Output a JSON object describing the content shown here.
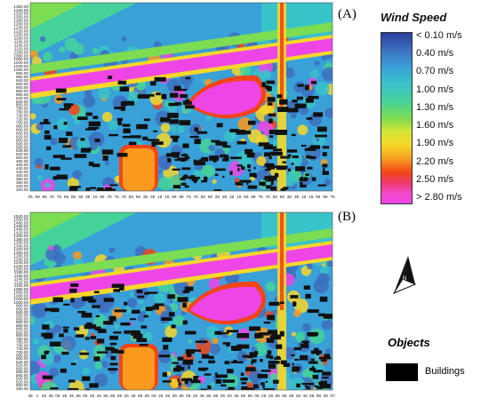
{
  "panels": [
    {
      "label": "(A)",
      "y_ticks": [
        "1360.00",
        "1340.00",
        "1320.00",
        "1300.00",
        "1280.00",
        "1260.00",
        "1240.00",
        "1220.00",
        "1200.00",
        "1180.00",
        "1160.00",
        "1140.00",
        "1120.00",
        "1100.00",
        "1080.00",
        "1060.00",
        "1040.00",
        "1020.00",
        "1000.00",
        "980.00",
        "960.00",
        "940.00",
        "920.00",
        "900.00",
        "880.00",
        "860.00",
        "840.00",
        "820.00",
        "800.00",
        "780.00",
        "760.00",
        "740.00",
        "720.00",
        "700.00",
        "680.00",
        "660.00",
        "640.00",
        "620.00",
        "600.00",
        "580.00",
        "560.00",
        "540.00",
        "520.00",
        "500.00",
        "480.00",
        "460.00",
        "440.00",
        "420.00",
        "400.00",
        "380.00",
        "360.00",
        "340.00",
        "320.00"
      ],
      "x_ticks": [
        "25",
        "96",
        "96",
        "76",
        "76",
        "56",
        "56",
        "36",
        "36",
        "16",
        "96",
        "76",
        "76",
        "76",
        "56",
        "56",
        "36",
        "36",
        "16",
        "16",
        "96",
        "96",
        "76",
        "76",
        "56",
        "56",
        "36",
        "36",
        "16",
        "16",
        "96",
        "96",
        "76",
        "76",
        "56",
        "56",
        "36",
        "36",
        "16",
        "16",
        "96",
        "96",
        "76"
      ]
    },
    {
      "label": "(B)",
      "y_ticks": [
        "1520.00",
        "1500.00",
        "1480.00",
        "1460.00",
        "1440.00",
        "1420.00",
        "1400.00",
        "1380.00",
        "1360.00",
        "1340.00",
        "1320.00",
        "1300.00",
        "1280.00",
        "1260.00",
        "1240.00",
        "1220.00",
        "1200.00",
        "1180.00",
        "1160.00",
        "1140.00",
        "1120.00",
        "1100.00",
        "1080.00",
        "1060.00",
        "1040.00",
        "1020.00",
        "1000.00",
        "980.00",
        "960.00",
        "940.00",
        "920.00",
        "900.00",
        "880.00",
        "860.00",
        "840.00",
        "820.00",
        "800.00",
        "780.00",
        "760.00",
        "740.00",
        "720.00",
        "700.00",
        "680.00",
        "660.00",
        "640.00",
        "620.00",
        "600.00",
        "580.00",
        "560.00",
        "540.00",
        "520.00",
        "500.00",
        "480.00"
      ],
      "x_ticks": [
        "38",
        "4",
        "26",
        "46",
        "06",
        "26",
        "46",
        "66",
        "06",
        "26",
        "46",
        "66",
        "86",
        "06",
        "26",
        "46",
        "66",
        "86",
        "06",
        "26",
        "46",
        "66",
        "86",
        "06",
        "26",
        "46",
        "66",
        "86",
        "06",
        "26",
        "46",
        "66",
        "86",
        "06",
        "26",
        "46",
        "66",
        "86",
        "06",
        "26",
        "46",
        "66",
        "86",
        "06",
        "07"
      ]
    }
  ],
  "legend": {
    "title": "Wind Speed",
    "items": [
      "< 0.10 m/s",
      "0.40  m/s",
      "0.70  m/s",
      "1.00  m/s",
      "1.30  m/s",
      "1.60  m/s",
      "1.90  m/s",
      "2.20  m/s",
      "2.50  m/s",
      "> 2.80 m/s"
    ],
    "colors": [
      "#2a3f9a",
      "#3d6fc0",
      "#3aa0d8",
      "#38c3c9",
      "#45d29a",
      "#7cdc52",
      "#f6d72a",
      "#f99a1f",
      "#f24418",
      "#ee46e6"
    ]
  },
  "north_arrow": {
    "letter": "N"
  },
  "objects": {
    "title": "Objects",
    "buildings_label": "Buildings"
  }
}
